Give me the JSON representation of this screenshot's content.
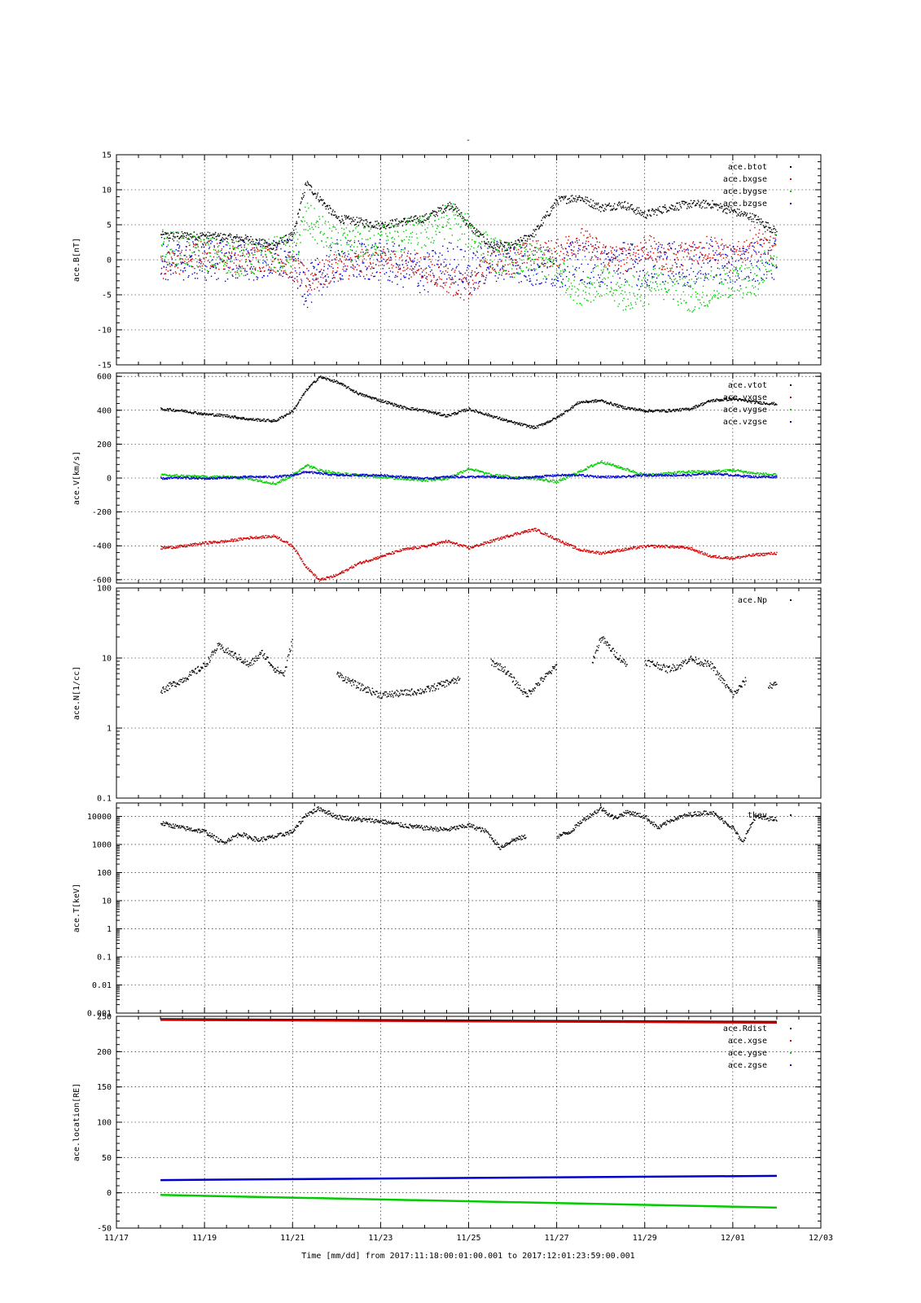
{
  "page_title": "-",
  "time_axis": {
    "ticks": [
      "11/17",
      "11/19",
      "11/21",
      "11/23",
      "11/25",
      "11/27",
      "11/29",
      "12/01",
      "12/03"
    ],
    "range_days": [
      0,
      16
    ],
    "xlabel": "Time [mm/dd]  from 2017:11:18:00:01:00.001  to  2017:12:01:23:59:00.001"
  },
  "colors": {
    "black": "#000000",
    "red": "#d40000",
    "green": "#00cc00",
    "blue": "#0000cc"
  },
  "chart_data": [
    {
      "type": "scatter",
      "ylabel": "ace.B[nT]",
      "ylim": [
        -15,
        15
      ],
      "yscale": "linear",
      "yticks": [
        15,
        10,
        5,
        0,
        -5,
        -10,
        -15
      ],
      "ytick_labels": [
        "15",
        "10",
        "5",
        "0",
        "-5",
        "-10",
        "-15"
      ],
      "grid": true,
      "legend_position": "top-right",
      "x": [
        1.0,
        2.0,
        3.0,
        3.5,
        4.0,
        4.3,
        5.0,
        6.0,
        7.0,
        7.6,
        8.0,
        8.5,
        9.0,
        9.5,
        10.0,
        10.5,
        11.0,
        11.5,
        12.0,
        12.5,
        13.0,
        13.5,
        14.0,
        14.5,
        15.0
      ],
      "series": [
        {
          "name": "ace.btot",
          "color": "#000000",
          "amp": 0.6,
          "values": [
            3.5,
            3.5,
            3,
            2,
            3.5,
            11,
            6,
            5,
            6,
            8,
            5,
            2,
            2,
            4,
            8.5,
            9,
            7.5,
            8,
            6.5,
            7.5,
            8,
            8,
            7,
            6,
            4
          ]
        },
        {
          "name": "ace.bxgse",
          "color": "#d40000",
          "amp": 2.0,
          "values": [
            -1,
            1,
            0,
            0.5,
            -1,
            -3,
            -1,
            0,
            -1,
            -3,
            -4,
            0,
            0,
            1,
            1,
            3,
            1,
            0,
            2,
            0,
            1,
            2,
            0,
            3,
            1
          ]
        },
        {
          "name": "ace.bygse",
          "color": "#00cc00",
          "amp": 2.5,
          "values": [
            2,
            1,
            0,
            1,
            1,
            6,
            2,
            3,
            4,
            6,
            4,
            1,
            0,
            0,
            -1,
            -4,
            -3,
            -5,
            -4,
            -3,
            -5,
            -4,
            -3,
            -3,
            2
          ]
        },
        {
          "name": "ace.bzgse",
          "color": "#0000cc",
          "amp": 3.0,
          "values": [
            0,
            0,
            0,
            0,
            0,
            -4,
            0,
            0,
            -2,
            0,
            -2,
            0,
            0,
            -1,
            -1,
            0,
            -1,
            0,
            -1,
            0,
            -1,
            0,
            -1,
            0,
            0
          ]
        }
      ]
    },
    {
      "type": "scatter",
      "ylabel": "ace.V[km/s]",
      "ylim": [
        -620,
        620
      ],
      "yscale": "linear",
      "yticks": [
        600,
        400,
        200,
        0,
        -200,
        -400,
        -600
      ],
      "ytick_labels": [
        "600",
        "400",
        "200",
        "0",
        "-200",
        "-400",
        "-600"
      ],
      "grid": true,
      "legend_position": "top-right",
      "x": [
        1.0,
        1.5,
        2.0,
        2.5,
        3.0,
        3.6,
        4.0,
        4.3,
        4.6,
        5.0,
        5.5,
        6.0,
        6.5,
        7.0,
        7.5,
        8.0,
        8.5,
        9.0,
        9.5,
        10.0,
        10.5,
        11.0,
        11.5,
        12.0,
        12.5,
        13.0,
        13.5,
        14.0,
        14.5,
        15.0
      ],
      "series": [
        {
          "name": "ace.vtot",
          "color": "#000000",
          "amp": 8,
          "values": [
            410,
            400,
            380,
            370,
            350,
            340,
            400,
            520,
            600,
            570,
            500,
            460,
            420,
            400,
            370,
            410,
            370,
            330,
            300,
            360,
            450,
            460,
            420,
            400,
            400,
            410,
            460,
            470,
            450,
            440
          ]
        },
        {
          "name": "ace.vxgse",
          "color": "#d40000",
          "amp": 8,
          "values": [
            -410,
            -400,
            -380,
            -370,
            -350,
            -340,
            -400,
            -520,
            -600,
            -570,
            -500,
            -460,
            -420,
            -400,
            -370,
            -410,
            -370,
            -330,
            -300,
            -360,
            -420,
            -440,
            -420,
            -400,
            -400,
            -410,
            -460,
            -470,
            -450,
            -440
          ]
        },
        {
          "name": "ace.vygse",
          "color": "#00cc00",
          "amp": 8,
          "values": [
            20,
            15,
            10,
            10,
            0,
            -30,
            20,
            80,
            50,
            30,
            20,
            10,
            0,
            -10,
            0,
            60,
            20,
            10,
            0,
            -20,
            40,
            100,
            60,
            20,
            30,
            40,
            40,
            50,
            30,
            20
          ]
        },
        {
          "name": "ace.vzgse",
          "color": "#0000cc",
          "amp": 6,
          "values": [
            0,
            5,
            0,
            5,
            10,
            10,
            20,
            40,
            30,
            20,
            20,
            20,
            10,
            0,
            10,
            10,
            10,
            0,
            10,
            20,
            20,
            10,
            10,
            20,
            20,
            20,
            30,
            20,
            10,
            10
          ]
        }
      ]
    },
    {
      "type": "scatter",
      "ylabel": "ace.N[1/cc]",
      "ylim": [
        0.1,
        100
      ],
      "yscale": "log",
      "yticks": [
        100,
        10,
        1,
        0.1
      ],
      "ytick_labels": [
        "100",
        "10",
        "1",
        "0.1"
      ],
      "grid": true,
      "legend_position": "top-right",
      "x": [
        1.0,
        1.5,
        2.0,
        2.3,
        2.8,
        3.0,
        3.3,
        3.6,
        3.8,
        4.0,
        4.3,
        4.6,
        5.0,
        5.5,
        6.0,
        6.5,
        7.0,
        7.5,
        7.8,
        8.0,
        8.3,
        8.5,
        8.8,
        9.0,
        9.3,
        9.5,
        9.8,
        10.0,
        10.3,
        10.6,
        10.8,
        11.0,
        11.3,
        11.6,
        11.8,
        12.0,
        12.3,
        12.5,
        12.8,
        13.0,
        13.5,
        14.0,
        14.3,
        14.5,
        14.8,
        15.0
      ],
      "series": [
        {
          "name": "ace.Np",
          "color": "#000000",
          "amp": 0.05,
          "values": [
            3.5,
            5,
            8,
            15,
            10,
            8,
            12,
            7,
            6,
            20,
            null,
            null,
            6,
            4,
            3,
            3.2,
            3.5,
            4.5,
            5,
            null,
            null,
            9,
            7,
            5,
            3,
            4,
            6,
            8,
            null,
            null,
            9,
            20,
            12,
            8,
            null,
            9,
            8,
            7,
            8,
            10,
            8,
            3,
            5,
            null,
            4,
            4.5
          ]
        }
      ]
    },
    {
      "type": "scatter",
      "ylabel": "ace.T[keV]",
      "ylim": [
        0.001,
        30000
      ],
      "yscale": "log",
      "yticks": [
        10000,
        1000,
        100,
        10,
        1,
        0.1,
        0.01,
        0.001
      ],
      "ytick_labels": [
        "10000",
        "1000",
        "100",
        "10",
        "1",
        "0.1",
        "0.01",
        "0.001"
      ],
      "grid": true,
      "legend_position": "top-right",
      "legend_label_visible": "tkev",
      "x": [
        1.0,
        1.5,
        2.0,
        2.4,
        2.8,
        3.2,
        3.6,
        4.0,
        4.3,
        4.6,
        5.0,
        5.5,
        6.0,
        6.5,
        7.0,
        7.5,
        8.0,
        8.4,
        8.7,
        9.0,
        9.3,
        9.6,
        10.0,
        10.3,
        10.6,
        11.0,
        11.3,
        11.6,
        12.0,
        12.3,
        12.6,
        13.0,
        13.5,
        14.0,
        14.2,
        14.5,
        15.0
      ],
      "series": [
        {
          "name": "tkev",
          "color": "#000000",
          "amp": 0.08,
          "values": [
            6000,
            4000,
            3000,
            1200,
            2500,
            1500,
            2000,
            3000,
            12000,
            20000,
            10000,
            8000,
            7000,
            5000,
            4000,
            3500,
            5000,
            3000,
            800,
            1500,
            2000,
            null,
            2000,
            3000,
            8000,
            20000,
            9000,
            15000,
            10000,
            4000,
            8000,
            12000,
            15000,
            4000,
            1200,
            10000,
            8000
          ]
        }
      ]
    },
    {
      "type": "line",
      "ylabel": "ace.location[RE]",
      "ylim": [
        -50,
        250
      ],
      "yscale": "linear",
      "yticks": [
        250,
        200,
        150,
        100,
        50,
        0,
        -50
      ],
      "ytick_labels": [
        "250",
        "200",
        "150",
        "100",
        "50",
        "0",
        "-50"
      ],
      "grid": true,
      "legend_position": "top-right",
      "x": [
        1.0,
        15.0
      ],
      "series": [
        {
          "name": "ace.Rdist",
          "color": "#000000",
          "values": [
            246,
            242
          ]
        },
        {
          "name": "ace.xgse",
          "color": "#d40000",
          "values": [
            245,
            241
          ]
        },
        {
          "name": "ace.ygse",
          "color": "#00cc00",
          "values": [
            -3,
            -21
          ]
        },
        {
          "name": "ace.zgse",
          "color": "#0000cc",
          "values": [
            18,
            24
          ]
        }
      ]
    }
  ]
}
